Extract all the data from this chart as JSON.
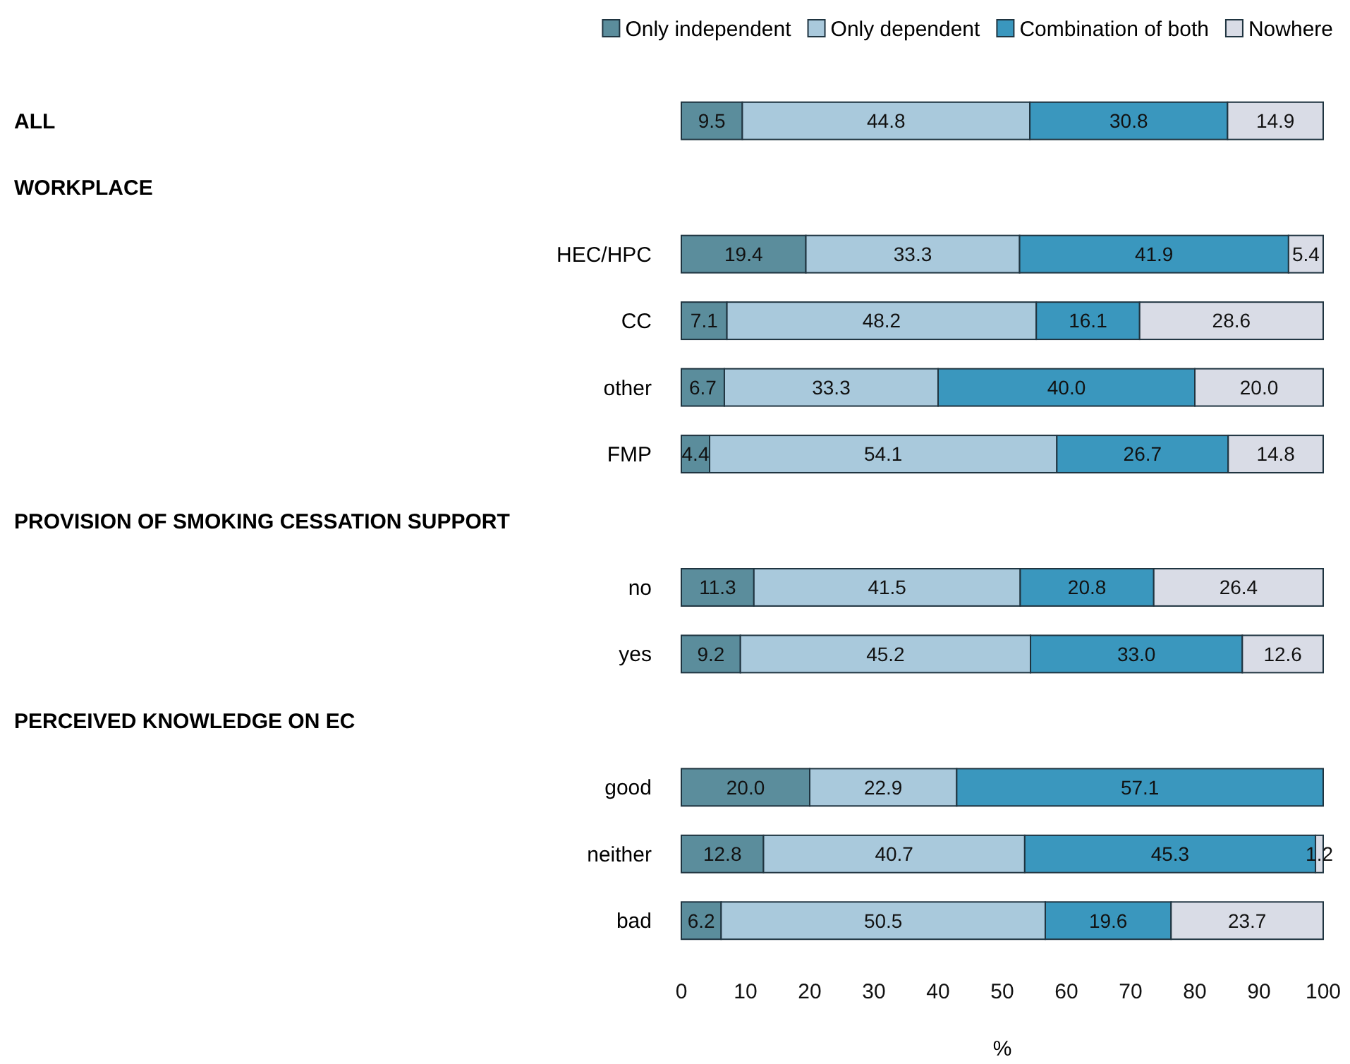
{
  "chart_data": {
    "type": "bar",
    "orientation": "horizontal",
    "stacked": true,
    "legend": "top",
    "grid": false,
    "xlabel": "%",
    "xlim": [
      0,
      100
    ],
    "xticks": [
      0,
      10,
      20,
      30,
      40,
      50,
      60,
      70,
      80,
      90,
      100
    ],
    "annotations": [
      "ALL",
      "WORKPLACE",
      "PROVISION OF SMOKING CESSATION SUPPORT",
      "PERCEIVED KNOWLEDGE ON EC"
    ],
    "categories": [
      null,
      null,
      "HEC/HPC",
      "CC",
      "other",
      "FMP",
      null,
      "no",
      "yes",
      null,
      "good",
      "neither",
      "bad"
    ],
    "series": [
      {
        "name": "Only independent",
        "color": "#5b8d9c",
        "values": [
          9.5,
          null,
          19.4,
          7.1,
          6.7,
          4.4,
          null,
          11.3,
          9.2,
          null,
          20,
          12.8,
          6.2
        ],
        "value_labels": [
          "9.5",
          null,
          "19.4",
          "7.1",
          "6.7",
          "4.4",
          null,
          "11.3",
          "9.2",
          null,
          "20.0",
          "12.8",
          "6.2"
        ]
      },
      {
        "name": "Only dependent",
        "color": "#a9c9dc",
        "values": [
          44.8,
          null,
          33.3,
          48.2,
          33.3,
          54.1,
          null,
          41.5,
          45.2,
          null,
          22.9,
          40.7,
          50.5
        ],
        "value_labels": [
          "44.8",
          null,
          "33.3",
          "48.2",
          "33.3",
          "54.1",
          null,
          "41.5",
          "45.2",
          null,
          "22.9",
          "40.7",
          "50.5"
        ]
      },
      {
        "name": "Combination of both",
        "color": "#3a97be",
        "values": [
          30.8,
          null,
          41.9,
          16.1,
          40,
          26.7,
          null,
          20.8,
          33,
          null,
          57.1,
          45.3,
          19.6
        ],
        "value_labels": [
          "30.8",
          null,
          "41.9",
          "16.1",
          "40.0",
          "26.7",
          null,
          "20.8",
          "33.0",
          null,
          "57.1",
          "45.3",
          "19.6"
        ]
      },
      {
        "name": "Nowhere",
        "color": "#d9dce6",
        "values": [
          14.9,
          null,
          5.4,
          28.6,
          20,
          14.8,
          null,
          26.4,
          12.6,
          null,
          null,
          1.2,
          23.7
        ],
        "value_labels": [
          "14.9",
          null,
          "5.4",
          "28.6",
          "20.0",
          "14.8",
          null,
          "26.4",
          "12.6",
          null,
          null,
          "1.2",
          "23.7"
        ]
      }
    ]
  }
}
